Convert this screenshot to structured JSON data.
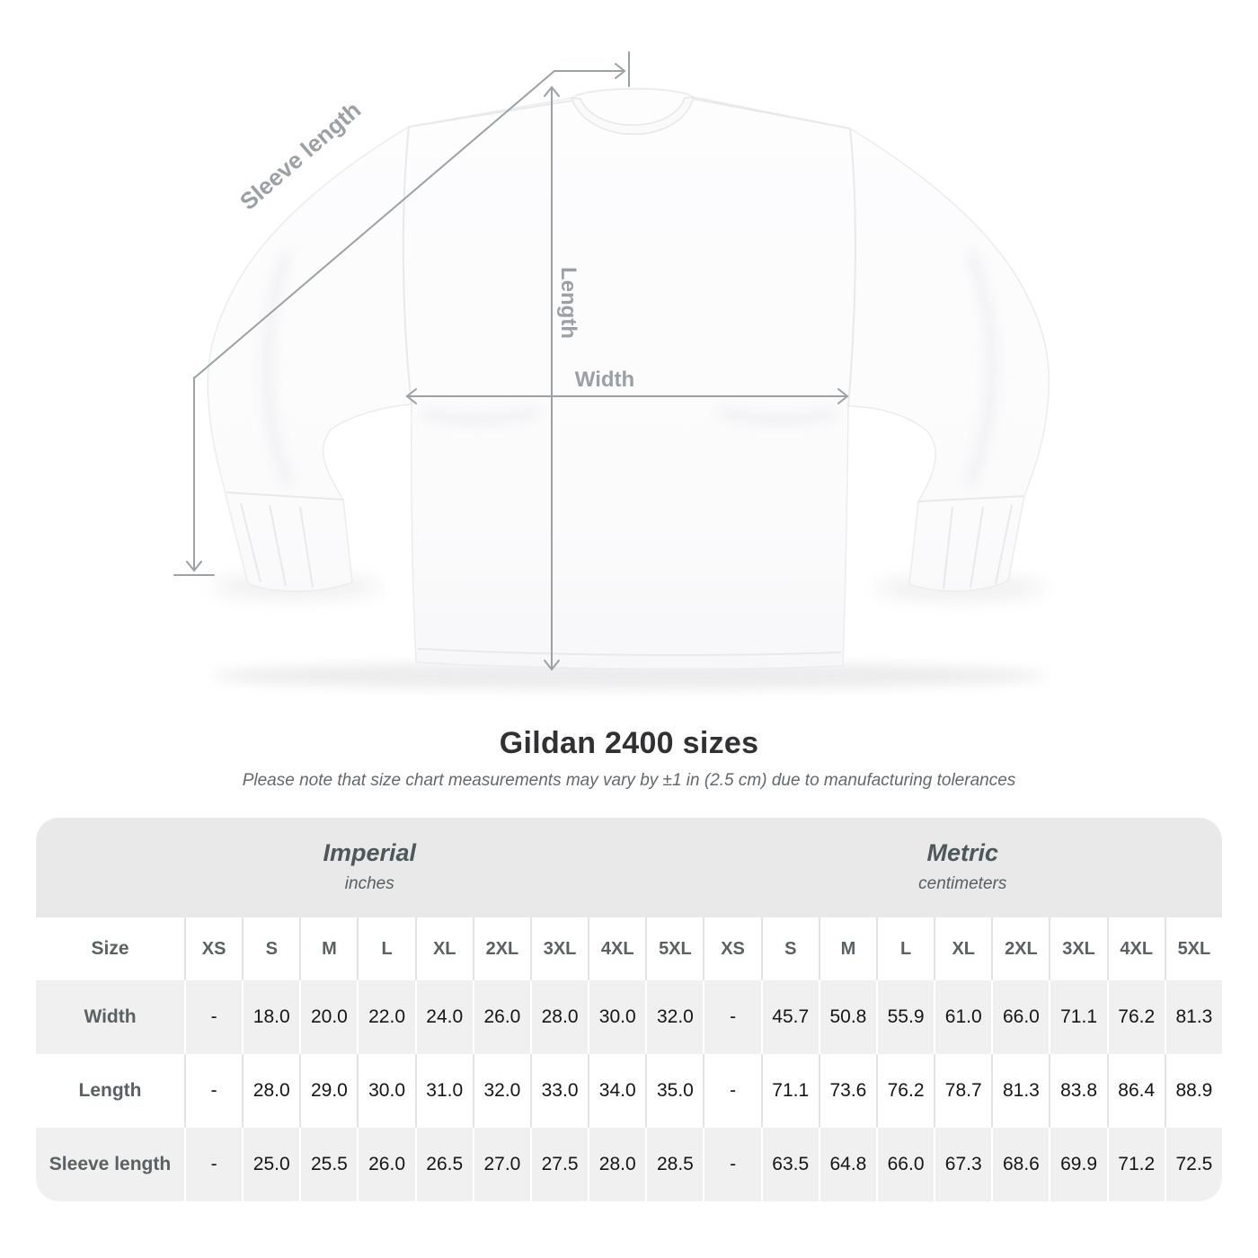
{
  "diagram": {
    "labels": {
      "sleeve_length": "Sleeve length",
      "length": "Length",
      "width": "Width"
    },
    "line_color": "#9ca1a4"
  },
  "title": "Gildan 2400 sizes",
  "subtitle": "Please note that size chart measurements may vary by ±1 in (2.5 cm) due to manufacturing tolerances",
  "table": {
    "size_header_label": "Size",
    "unit_groups": [
      {
        "label": "Imperial",
        "sublabel": "inches"
      },
      {
        "label": "Metric",
        "sublabel": "centimeters"
      }
    ],
    "sizes": [
      "XS",
      "S",
      "M",
      "L",
      "XL",
      "2XL",
      "3XL",
      "4XL",
      "5XL"
    ],
    "rows": [
      {
        "label": "Width",
        "imperial": [
          "-",
          "18.0",
          "20.0",
          "22.0",
          "24.0",
          "26.0",
          "28.0",
          "30.0",
          "32.0"
        ],
        "metric": [
          "-",
          "45.7",
          "50.8",
          "55.9",
          "61.0",
          "66.0",
          "71.1",
          "76.2",
          "81.3"
        ]
      },
      {
        "label": "Length",
        "imperial": [
          "-",
          "28.0",
          "29.0",
          "30.0",
          "31.0",
          "32.0",
          "33.0",
          "34.0",
          "35.0"
        ],
        "metric": [
          "-",
          "71.1",
          "73.6",
          "76.2",
          "78.7",
          "81.3",
          "83.8",
          "86.4",
          "88.9"
        ]
      },
      {
        "label": "Sleeve length",
        "imperial": [
          "-",
          "25.0",
          "25.5",
          "26.0",
          "26.5",
          "27.0",
          "27.5",
          "28.0",
          "28.5"
        ],
        "metric": [
          "-",
          "63.5",
          "64.8",
          "66.0",
          "67.3",
          "68.6",
          "69.9",
          "71.2",
          "72.5"
        ]
      }
    ]
  },
  "chart_data": {
    "type": "table",
    "title": "Gildan 2400 sizes",
    "columns": [
      "Size",
      "XS",
      "S",
      "M",
      "L",
      "XL",
      "2XL",
      "3XL",
      "4XL",
      "5XL"
    ],
    "units": {
      "imperial": "inches",
      "metric": "centimeters"
    },
    "rows_imperial": [
      [
        "Width",
        "-",
        18.0,
        20.0,
        22.0,
        24.0,
        26.0,
        28.0,
        30.0,
        32.0
      ],
      [
        "Length",
        "-",
        28.0,
        29.0,
        30.0,
        31.0,
        32.0,
        33.0,
        34.0,
        35.0
      ],
      [
        "Sleeve length",
        "-",
        25.0,
        25.5,
        26.0,
        26.5,
        27.0,
        27.5,
        28.0,
        28.5
      ]
    ],
    "rows_metric": [
      [
        "Width",
        "-",
        45.7,
        50.8,
        55.9,
        61.0,
        66.0,
        71.1,
        76.2,
        81.3
      ],
      [
        "Length",
        "-",
        71.1,
        73.6,
        76.2,
        78.7,
        81.3,
        83.8,
        86.4,
        88.9
      ],
      [
        "Sleeve length",
        "-",
        63.5,
        64.8,
        66.0,
        67.3,
        68.6,
        69.9,
        71.2,
        72.5
      ]
    ]
  },
  "colors": {
    "header_band": "#e9e9e9",
    "row_stripe": "#f0f0f0",
    "divider_on_white": "#e3e3e3",
    "divider_on_gray": "#ffffff",
    "measure_line": "#9ca1a4",
    "measure_label": "#9aa0a3",
    "title_text": "#313134",
    "table_label_text": "#596163",
    "table_value_text": "#151515"
  }
}
